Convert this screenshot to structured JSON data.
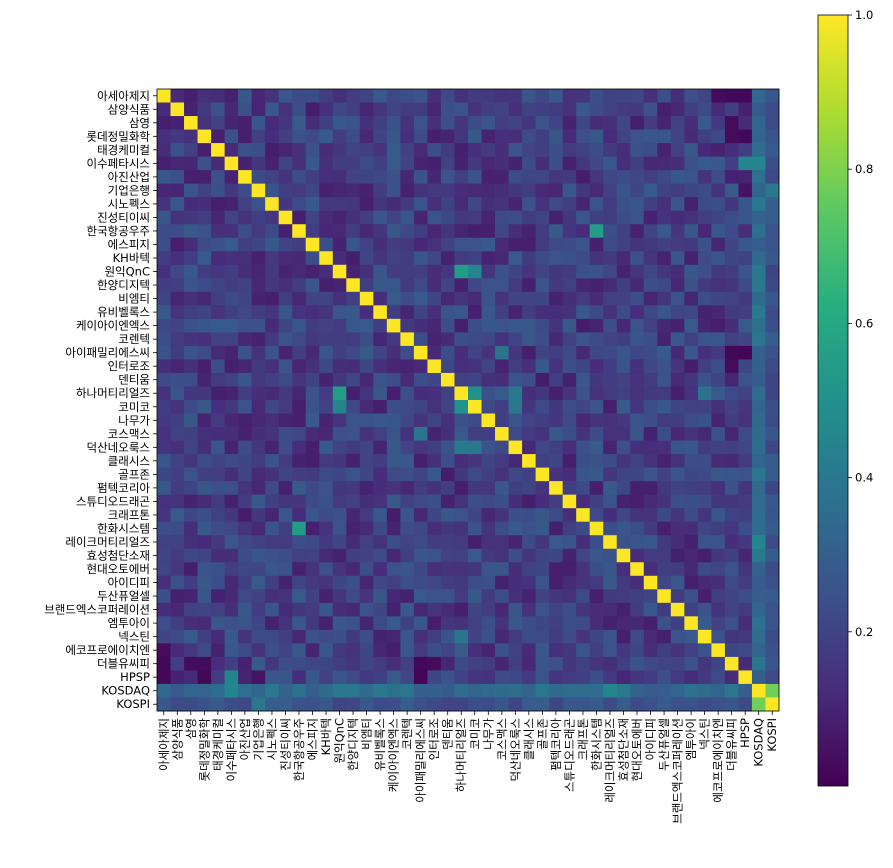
{
  "chart_data": {
    "type": "heatmap",
    "title": "",
    "xlabel": "",
    "ylabel": "",
    "labels": [
      "아세아제지",
      "삼양식품",
      "삼영",
      "롯데정밀화학",
      "태경케미컬",
      "이수페타시스",
      "아진산업",
      "기업은행",
      "시노펙스",
      "진성티이씨",
      "한국항공우주",
      "에스피지",
      "KH바텍",
      "원익QnC",
      "한양디지텍",
      "비엠티",
      "유비벨록스",
      "케이아이엔엑스",
      "코렌텍",
      "아이패밀리에스씨",
      "인터로조",
      "덴티움",
      "하나머티리얼즈",
      "코미코",
      "나무가",
      "코스맥스",
      "덕산네오룩스",
      "클래시스",
      "골프존",
      "펌텍코리아",
      "스튜디오드래곤",
      "크래프톤",
      "한화시스템",
      "레이크머티리얼즈",
      "효성첨단소재",
      "현대오토에버",
      "아이디피",
      "두산퓨얼셀",
      "브랜드엑스코퍼레이션",
      "엠투아이",
      "넥스틴",
      "에코프로에이치엔",
      "더블유씨피",
      "HPSP",
      "KOSDAQ",
      "KOSPI"
    ],
    "colorbar": {
      "min": 0.0,
      "max": 1.0,
      "ticks": [
        "0.2",
        "0.4",
        "0.6",
        "0.8",
        "1.0"
      ],
      "tick_values": [
        0.2,
        0.4,
        0.6,
        0.8,
        1.0
      ],
      "colormap": "viridis"
    },
    "diagonal_value": 1.0,
    "baseline_value": 0.18,
    "highlights": [
      {
        "a": "원익QnC",
        "b": "하나머티리얼즈",
        "value": 0.55
      },
      {
        "a": "원익QnC",
        "b": "코미코",
        "value": 0.45
      },
      {
        "a": "하나머티리얼즈",
        "b": "코미코",
        "value": 0.5
      },
      {
        "a": "한국항공우주",
        "b": "한화시스템",
        "value": 0.55
      },
      {
        "a": "이수페타시스",
        "b": "HPSP",
        "value": 0.45
      },
      {
        "a": "이수페타시스",
        "b": "KOSDAQ",
        "value": 0.45
      },
      {
        "a": "기업은행",
        "b": "KOSPI",
        "value": 0.4
      },
      {
        "a": "KOSDAQ",
        "b": "KOSPI",
        "value": 0.78
      },
      {
        "a": "하나머티리얼즈",
        "b": "덕산네오룩스",
        "value": 0.4
      },
      {
        "a": "코미코",
        "b": "덕산네오룩스",
        "value": 0.4
      },
      {
        "a": "레이크머티리얼즈",
        "b": "KOSDAQ",
        "value": 0.45
      },
      {
        "a": "넥스틴",
        "b": "하나머티리얼즈",
        "value": 0.38
      },
      {
        "a": "원익QnC",
        "b": "KOSDAQ",
        "value": 0.4
      },
      {
        "a": "아이패밀리에스씨",
        "b": "코스맥스",
        "value": 0.38
      }
    ],
    "low_pairs": [
      {
        "a": "아세아제지",
        "b": "에코프로에이치엔",
        "value": 0.03
      },
      {
        "a": "아세아제지",
        "b": "더블유씨피",
        "value": 0.02
      },
      {
        "a": "아세아제지",
        "b": "HPSP",
        "value": 0.02
      },
      {
        "a": "삼영",
        "b": "더블유씨피",
        "value": 0.03
      },
      {
        "a": "롯데정밀화학",
        "b": "HPSP",
        "value": 0.02
      },
      {
        "a": "롯데정밀화학",
        "b": "더블유씨피",
        "value": 0.03
      },
      {
        "a": "아이패밀리에스씨",
        "b": "HPSP",
        "value": 0.01
      },
      {
        "a": "아이패밀리에스씨",
        "b": "더블유씨피",
        "value": 0.02
      },
      {
        "a": "인터로조",
        "b": "더블유씨피",
        "value": 0.03
      },
      {
        "a": "더블유씨피",
        "b": "아이패밀리에스씨",
        "value": 0.02
      },
      {
        "a": "더블유씨피",
        "b": "인터로조",
        "value": 0.03
      },
      {
        "a": "HPSP",
        "b": "기업은행",
        "value": 0.05
      }
    ]
  }
}
